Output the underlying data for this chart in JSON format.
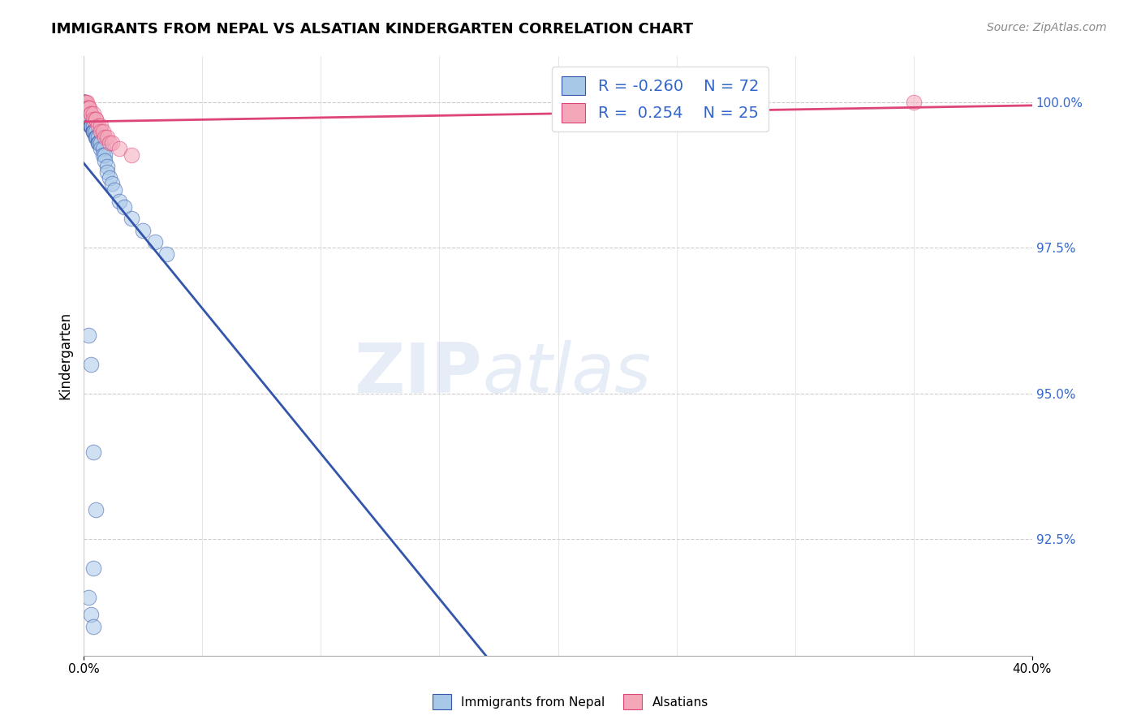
{
  "title": "IMMIGRANTS FROM NEPAL VS ALSATIAN KINDERGARTEN CORRELATION CHART",
  "source": "Source: ZipAtlas.com",
  "ylabel": "Kindergarten",
  "ylabel_right_labels": [
    "100.0%",
    "97.5%",
    "95.0%",
    "92.5%"
  ],
  "ylabel_right_values": [
    1.0,
    0.975,
    0.95,
    0.925
  ],
  "legend_blue_r": "-0.260",
  "legend_blue_n": "72",
  "legend_pink_r": "0.254",
  "legend_pink_n": "25",
  "blue_color": "#a8c8e8",
  "pink_color": "#f4a7b9",
  "trend_blue_color": "#3355aa",
  "trend_pink_color": "#dd4477",
  "watermark_zip": "ZIP",
  "watermark_atlas": "atlas",
  "x_min": 0.0,
  "x_max": 0.4,
  "y_min": 0.905,
  "y_max": 1.008,
  "nepal_x": [
    0.0002,
    0.0003,
    0.0004,
    0.0005,
    0.0006,
    0.0007,
    0.0008,
    0.0009,
    0.001,
    0.001,
    0.001,
    0.001,
    0.0012,
    0.0013,
    0.0014,
    0.0015,
    0.0016,
    0.0017,
    0.0018,
    0.0019,
    0.002,
    0.002,
    0.002,
    0.002,
    0.0022,
    0.0023,
    0.0025,
    0.0027,
    0.003,
    0.003,
    0.003,
    0.003,
    0.0032,
    0.0035,
    0.004,
    0.004,
    0.004,
    0.0042,
    0.0045,
    0.005,
    0.005,
    0.005,
    0.0055,
    0.006,
    0.006,
    0.006,
    0.0065,
    0.007,
    0.007,
    0.008,
    0.008,
    0.009,
    0.009,
    0.01,
    0.01,
    0.011,
    0.012,
    0.013,
    0.015,
    0.017,
    0.02,
    0.025,
    0.03,
    0.035,
    0.002,
    0.003,
    0.004,
    0.005,
    0.004,
    0.002,
    0.003,
    0.004
  ],
  "nepal_y": [
    1.0,
    1.0,
    1.0,
    1.0,
    0.999,
    0.999,
    0.999,
    0.999,
    0.999,
    0.999,
    0.999,
    0.998,
    0.998,
    0.998,
    0.998,
    0.998,
    0.998,
    0.998,
    0.998,
    0.997,
    0.997,
    0.997,
    0.997,
    0.997,
    0.997,
    0.997,
    0.997,
    0.996,
    0.996,
    0.996,
    0.996,
    0.996,
    0.996,
    0.996,
    0.996,
    0.995,
    0.995,
    0.995,
    0.995,
    0.995,
    0.994,
    0.994,
    0.994,
    0.994,
    0.993,
    0.993,
    0.993,
    0.993,
    0.992,
    0.992,
    0.991,
    0.991,
    0.99,
    0.989,
    0.988,
    0.987,
    0.986,
    0.985,
    0.983,
    0.982,
    0.98,
    0.978,
    0.976,
    0.974,
    0.96,
    0.955,
    0.94,
    0.93,
    0.92,
    0.915,
    0.912,
    0.91
  ],
  "alsatian_x": [
    0.0003,
    0.0006,
    0.001,
    0.0012,
    0.0015,
    0.002,
    0.002,
    0.0025,
    0.003,
    0.003,
    0.004,
    0.004,
    0.005,
    0.005,
    0.006,
    0.007,
    0.007,
    0.008,
    0.009,
    0.01,
    0.011,
    0.012,
    0.015,
    0.02,
    0.35
  ],
  "alsatian_y": [
    1.0,
    1.0,
    1.0,
    1.0,
    0.999,
    0.999,
    0.999,
    0.999,
    0.998,
    0.998,
    0.998,
    0.997,
    0.997,
    0.997,
    0.996,
    0.996,
    0.995,
    0.995,
    0.994,
    0.994,
    0.993,
    0.993,
    0.992,
    0.991,
    1.0
  ]
}
